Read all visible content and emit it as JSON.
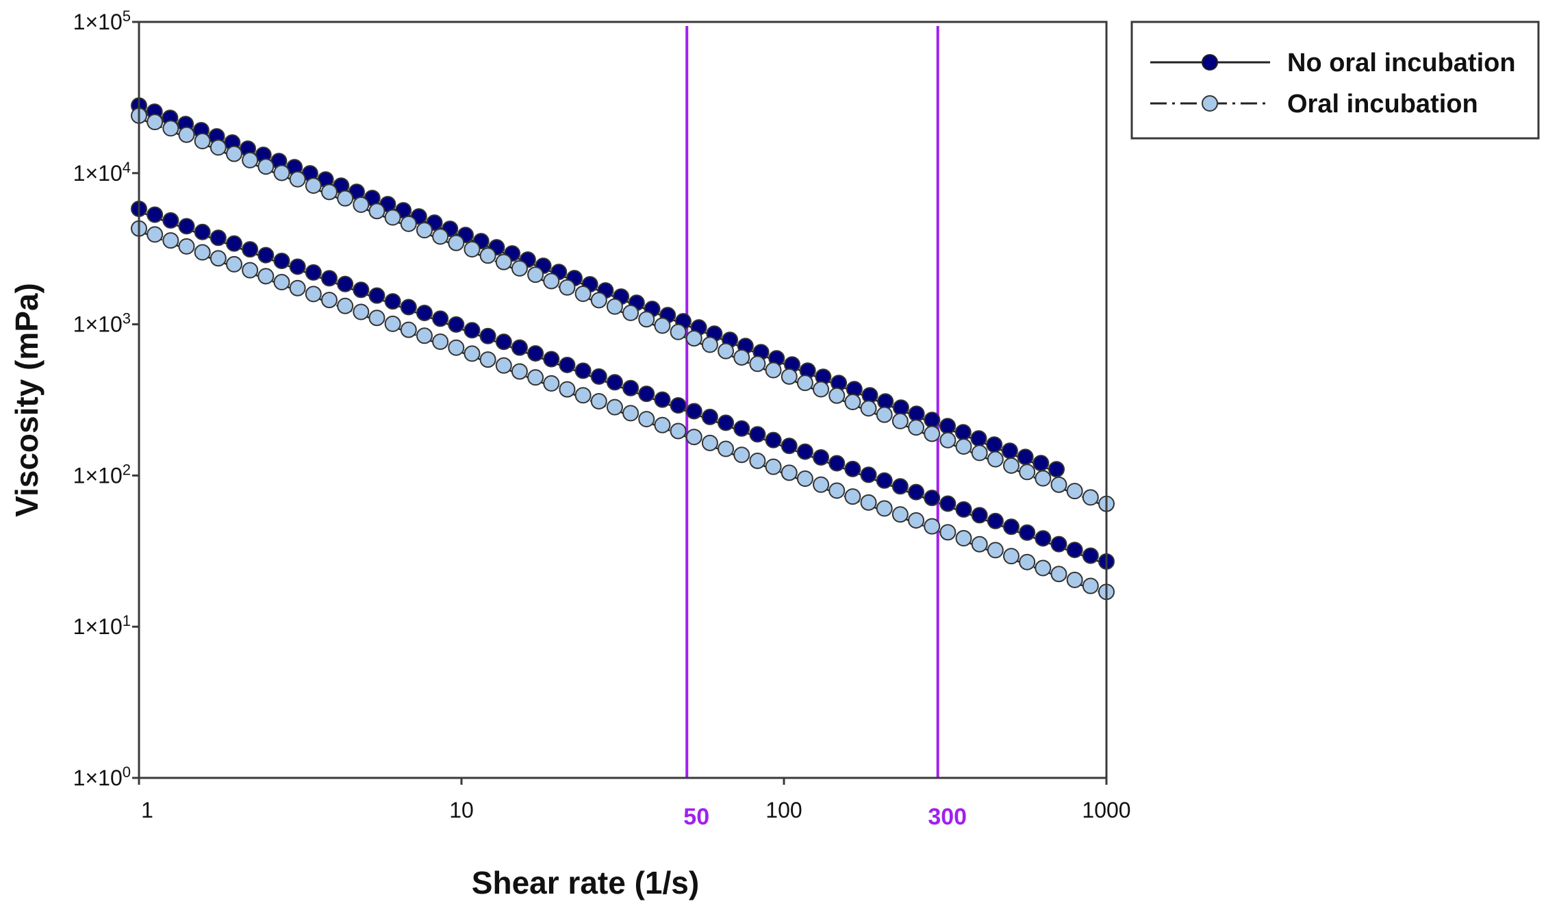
{
  "chart_data": {
    "type": "scatter",
    "xlabel": "Shear rate (1/s)",
    "ylabel": "Viscosity (mPa)",
    "xscale": "log",
    "yscale": "log",
    "xlim": [
      1,
      1000
    ],
    "ylim": [
      1,
      100000
    ],
    "grid": false,
    "legend_position": "top-right, outside plot",
    "x_ticks": [
      {
        "value": 1,
        "label": "1"
      },
      {
        "value": 10,
        "label": "10"
      },
      {
        "value": 100,
        "label": "100"
      },
      {
        "value": 1000,
        "label": "1000"
      }
    ],
    "y_ticks": [
      {
        "value": 1,
        "mantissa": "1×10",
        "exp": "0"
      },
      {
        "value": 10,
        "mantissa": "1×10",
        "exp": "1"
      },
      {
        "value": 100,
        "mantissa": "1×10",
        "exp": "2"
      },
      {
        "value": 1000,
        "mantissa": "1×10",
        "exp": "3"
      },
      {
        "value": 10000,
        "mantissa": "1×10",
        "exp": "4"
      },
      {
        "value": 100000,
        "mantissa": "1×10",
        "exp": "5"
      }
    ],
    "reference_lines": [
      {
        "x": 50,
        "label": "50",
        "color": "#a020f0"
      },
      {
        "x": 300,
        "label": "300",
        "color": "#a020f0"
      }
    ],
    "legend": [
      {
        "label": "No oral incubation",
        "marker_fill": "#00007f",
        "line_style": "solid"
      },
      {
        "label": "Oral incubation",
        "marker_fill": "#a9c9ea",
        "line_style": "dash-dot"
      }
    ],
    "series": [
      {
        "name": "No oral incubation",
        "group": "upper",
        "x_start": 1,
        "x_end": 700,
        "y_start": 28000,
        "y_end": 110,
        "count": 60,
        "marker_fill": "#00007f"
      },
      {
        "name": "Oral incubation",
        "group": "upper",
        "x_start": 1,
        "x_end": 1000,
        "y_start": 24000,
        "y_end": 65,
        "count": 62,
        "marker_fill": "#a9c9ea"
      },
      {
        "name": "No oral incubation",
        "group": "lower",
        "x_start": 1,
        "x_end": 1000,
        "y_start": 5800,
        "y_end": 27,
        "count": 62,
        "marker_fill": "#00007f"
      },
      {
        "name": "Oral incubation",
        "group": "lower",
        "x_start": 1,
        "x_end": 1000,
        "y_start": 4300,
        "y_end": 17,
        "count": 62,
        "marker_fill": "#a9c9ea"
      }
    ]
  }
}
